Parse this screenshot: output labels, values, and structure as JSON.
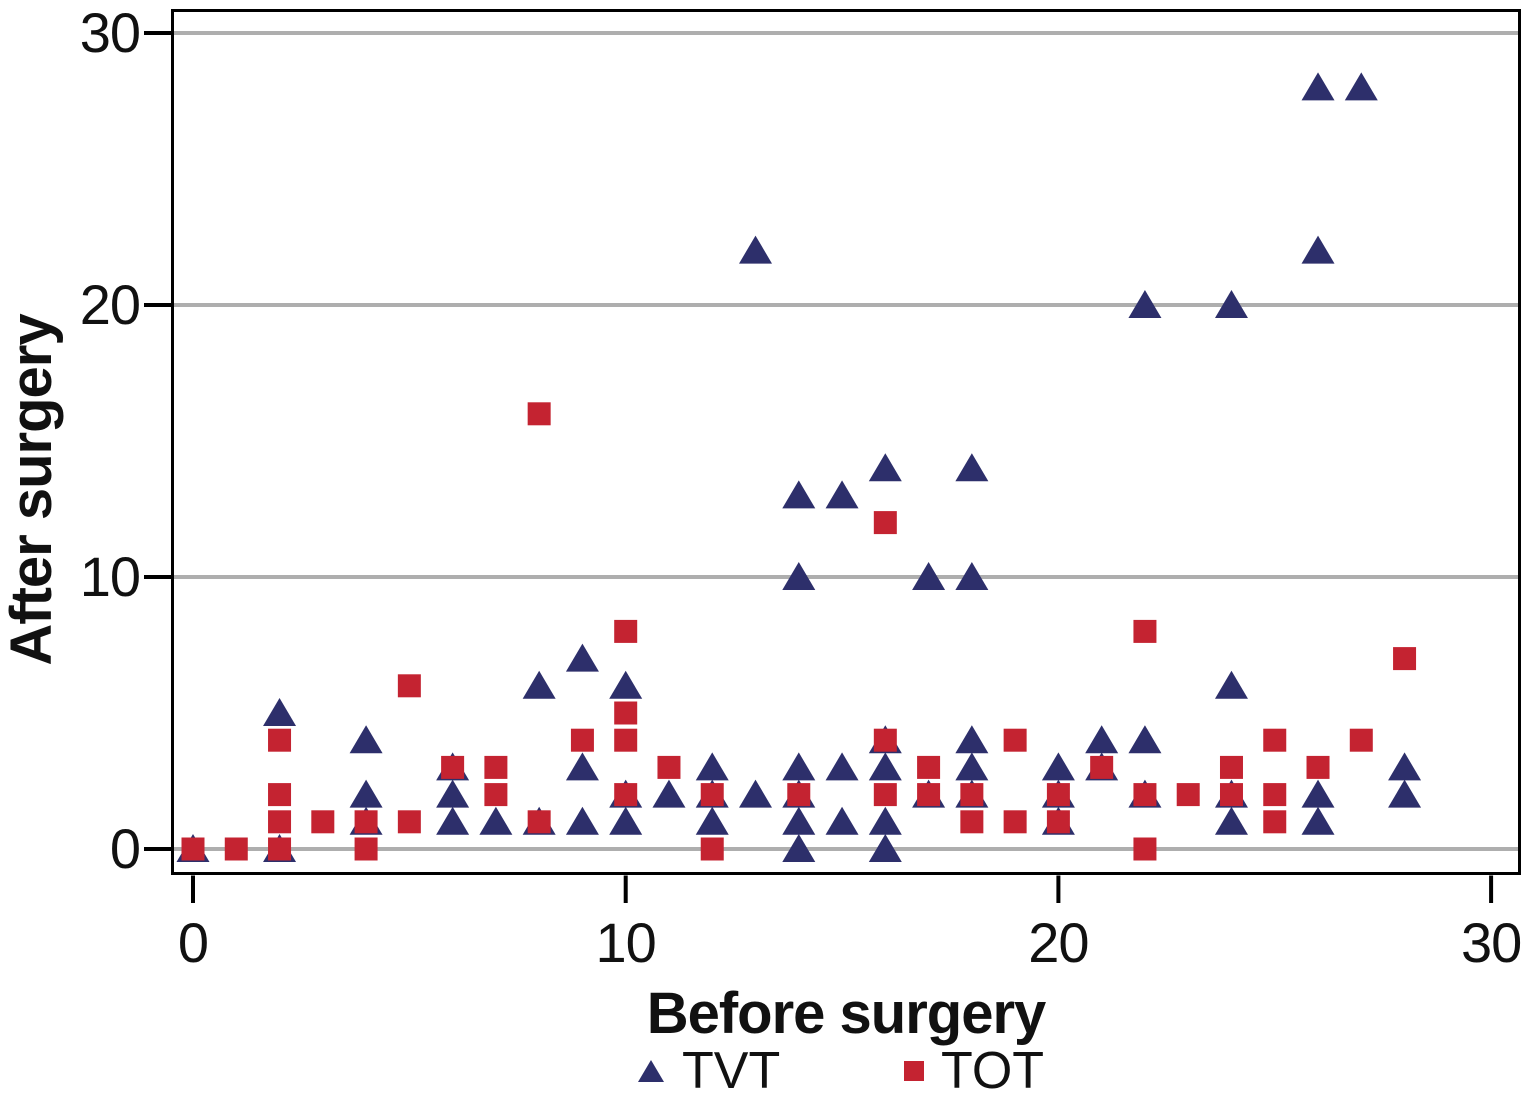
{
  "chart_data": {
    "type": "scatter",
    "title": "",
    "xlabel": "Before surgery",
    "ylabel": "After surgery",
    "xlim": [
      -0.5,
      30.7
    ],
    "ylim": [
      0,
      30.9
    ],
    "x_ticks": [
      "0",
      "10",
      "20",
      "30"
    ],
    "y_ticks": [
      "0",
      "10",
      "20",
      "30"
    ],
    "grid": "horizontal-only",
    "grid_color": "#aeaeae",
    "axis_color": "#000000",
    "legend_position": "bottom",
    "series": [
      {
        "name": "TVT",
        "marker": "triangle",
        "color": "#2d2f6b",
        "points": [
          [
            0,
            0
          ],
          [
            2,
            0
          ],
          [
            2,
            5
          ],
          [
            4,
            1
          ],
          [
            4,
            2
          ],
          [
            4,
            4
          ],
          [
            6,
            1
          ],
          [
            6,
            2
          ],
          [
            6,
            3
          ],
          [
            7,
            1
          ],
          [
            8,
            1
          ],
          [
            8,
            6
          ],
          [
            9,
            1
          ],
          [
            9,
            3
          ],
          [
            9,
            7
          ],
          [
            10,
            1
          ],
          [
            10,
            2
          ],
          [
            10,
            6
          ],
          [
            11,
            2
          ],
          [
            12,
            1
          ],
          [
            12,
            2
          ],
          [
            12,
            3
          ],
          [
            13,
            2
          ],
          [
            13,
            22
          ],
          [
            14,
            0
          ],
          [
            14,
            1
          ],
          [
            14,
            2
          ],
          [
            14,
            3
          ],
          [
            14,
            10
          ],
          [
            14,
            13
          ],
          [
            15,
            1
          ],
          [
            15,
            3
          ],
          [
            15,
            13
          ],
          [
            16,
            0
          ],
          [
            16,
            1
          ],
          [
            16,
            3
          ],
          [
            16,
            4
          ],
          [
            16,
            14
          ],
          [
            17,
            2
          ],
          [
            17,
            10
          ],
          [
            18,
            2
          ],
          [
            18,
            3
          ],
          [
            18,
            4
          ],
          [
            18,
            10
          ],
          [
            18,
            14
          ],
          [
            20,
            1
          ],
          [
            20,
            2
          ],
          [
            20,
            3
          ],
          [
            21,
            3
          ],
          [
            21,
            4
          ],
          [
            22,
            2
          ],
          [
            22,
            4
          ],
          [
            22,
            20
          ],
          [
            24,
            1
          ],
          [
            24,
            2
          ],
          [
            24,
            6
          ],
          [
            24,
            20
          ],
          [
            26,
            1
          ],
          [
            26,
            2
          ],
          [
            26,
            22
          ],
          [
            26,
            28
          ],
          [
            27,
            28
          ],
          [
            28,
            2
          ],
          [
            28,
            3
          ]
        ]
      },
      {
        "name": "TOT",
        "marker": "square",
        "color": "#c42331",
        "points": [
          [
            0,
            0
          ],
          [
            1,
            0
          ],
          [
            2,
            0
          ],
          [
            2,
            1
          ],
          [
            2,
            2
          ],
          [
            2,
            4
          ],
          [
            3,
            1
          ],
          [
            4,
            0
          ],
          [
            4,
            1
          ],
          [
            5,
            1
          ],
          [
            5,
            6
          ],
          [
            6,
            3
          ],
          [
            7,
            2
          ],
          [
            7,
            3
          ],
          [
            8,
            1
          ],
          [
            8,
            16
          ],
          [
            9,
            4
          ],
          [
            10,
            2
          ],
          [
            10,
            4
          ],
          [
            10,
            5
          ],
          [
            10,
            8
          ],
          [
            11,
            3
          ],
          [
            12,
            0
          ],
          [
            12,
            2
          ],
          [
            14,
            2
          ],
          [
            16,
            2
          ],
          [
            16,
            4
          ],
          [
            16,
            12
          ],
          [
            17,
            2
          ],
          [
            17,
            3
          ],
          [
            18,
            1
          ],
          [
            18,
            2
          ],
          [
            19,
            1
          ],
          [
            19,
            4
          ],
          [
            20,
            1
          ],
          [
            20,
            2
          ],
          [
            21,
            3
          ],
          [
            22,
            0
          ],
          [
            22,
            2
          ],
          [
            22,
            8
          ],
          [
            23,
            2
          ],
          [
            24,
            2
          ],
          [
            24,
            3
          ],
          [
            25,
            1
          ],
          [
            25,
            2
          ],
          [
            25,
            4
          ],
          [
            26,
            3
          ],
          [
            27,
            4
          ],
          [
            28,
            7
          ]
        ]
      }
    ]
  }
}
